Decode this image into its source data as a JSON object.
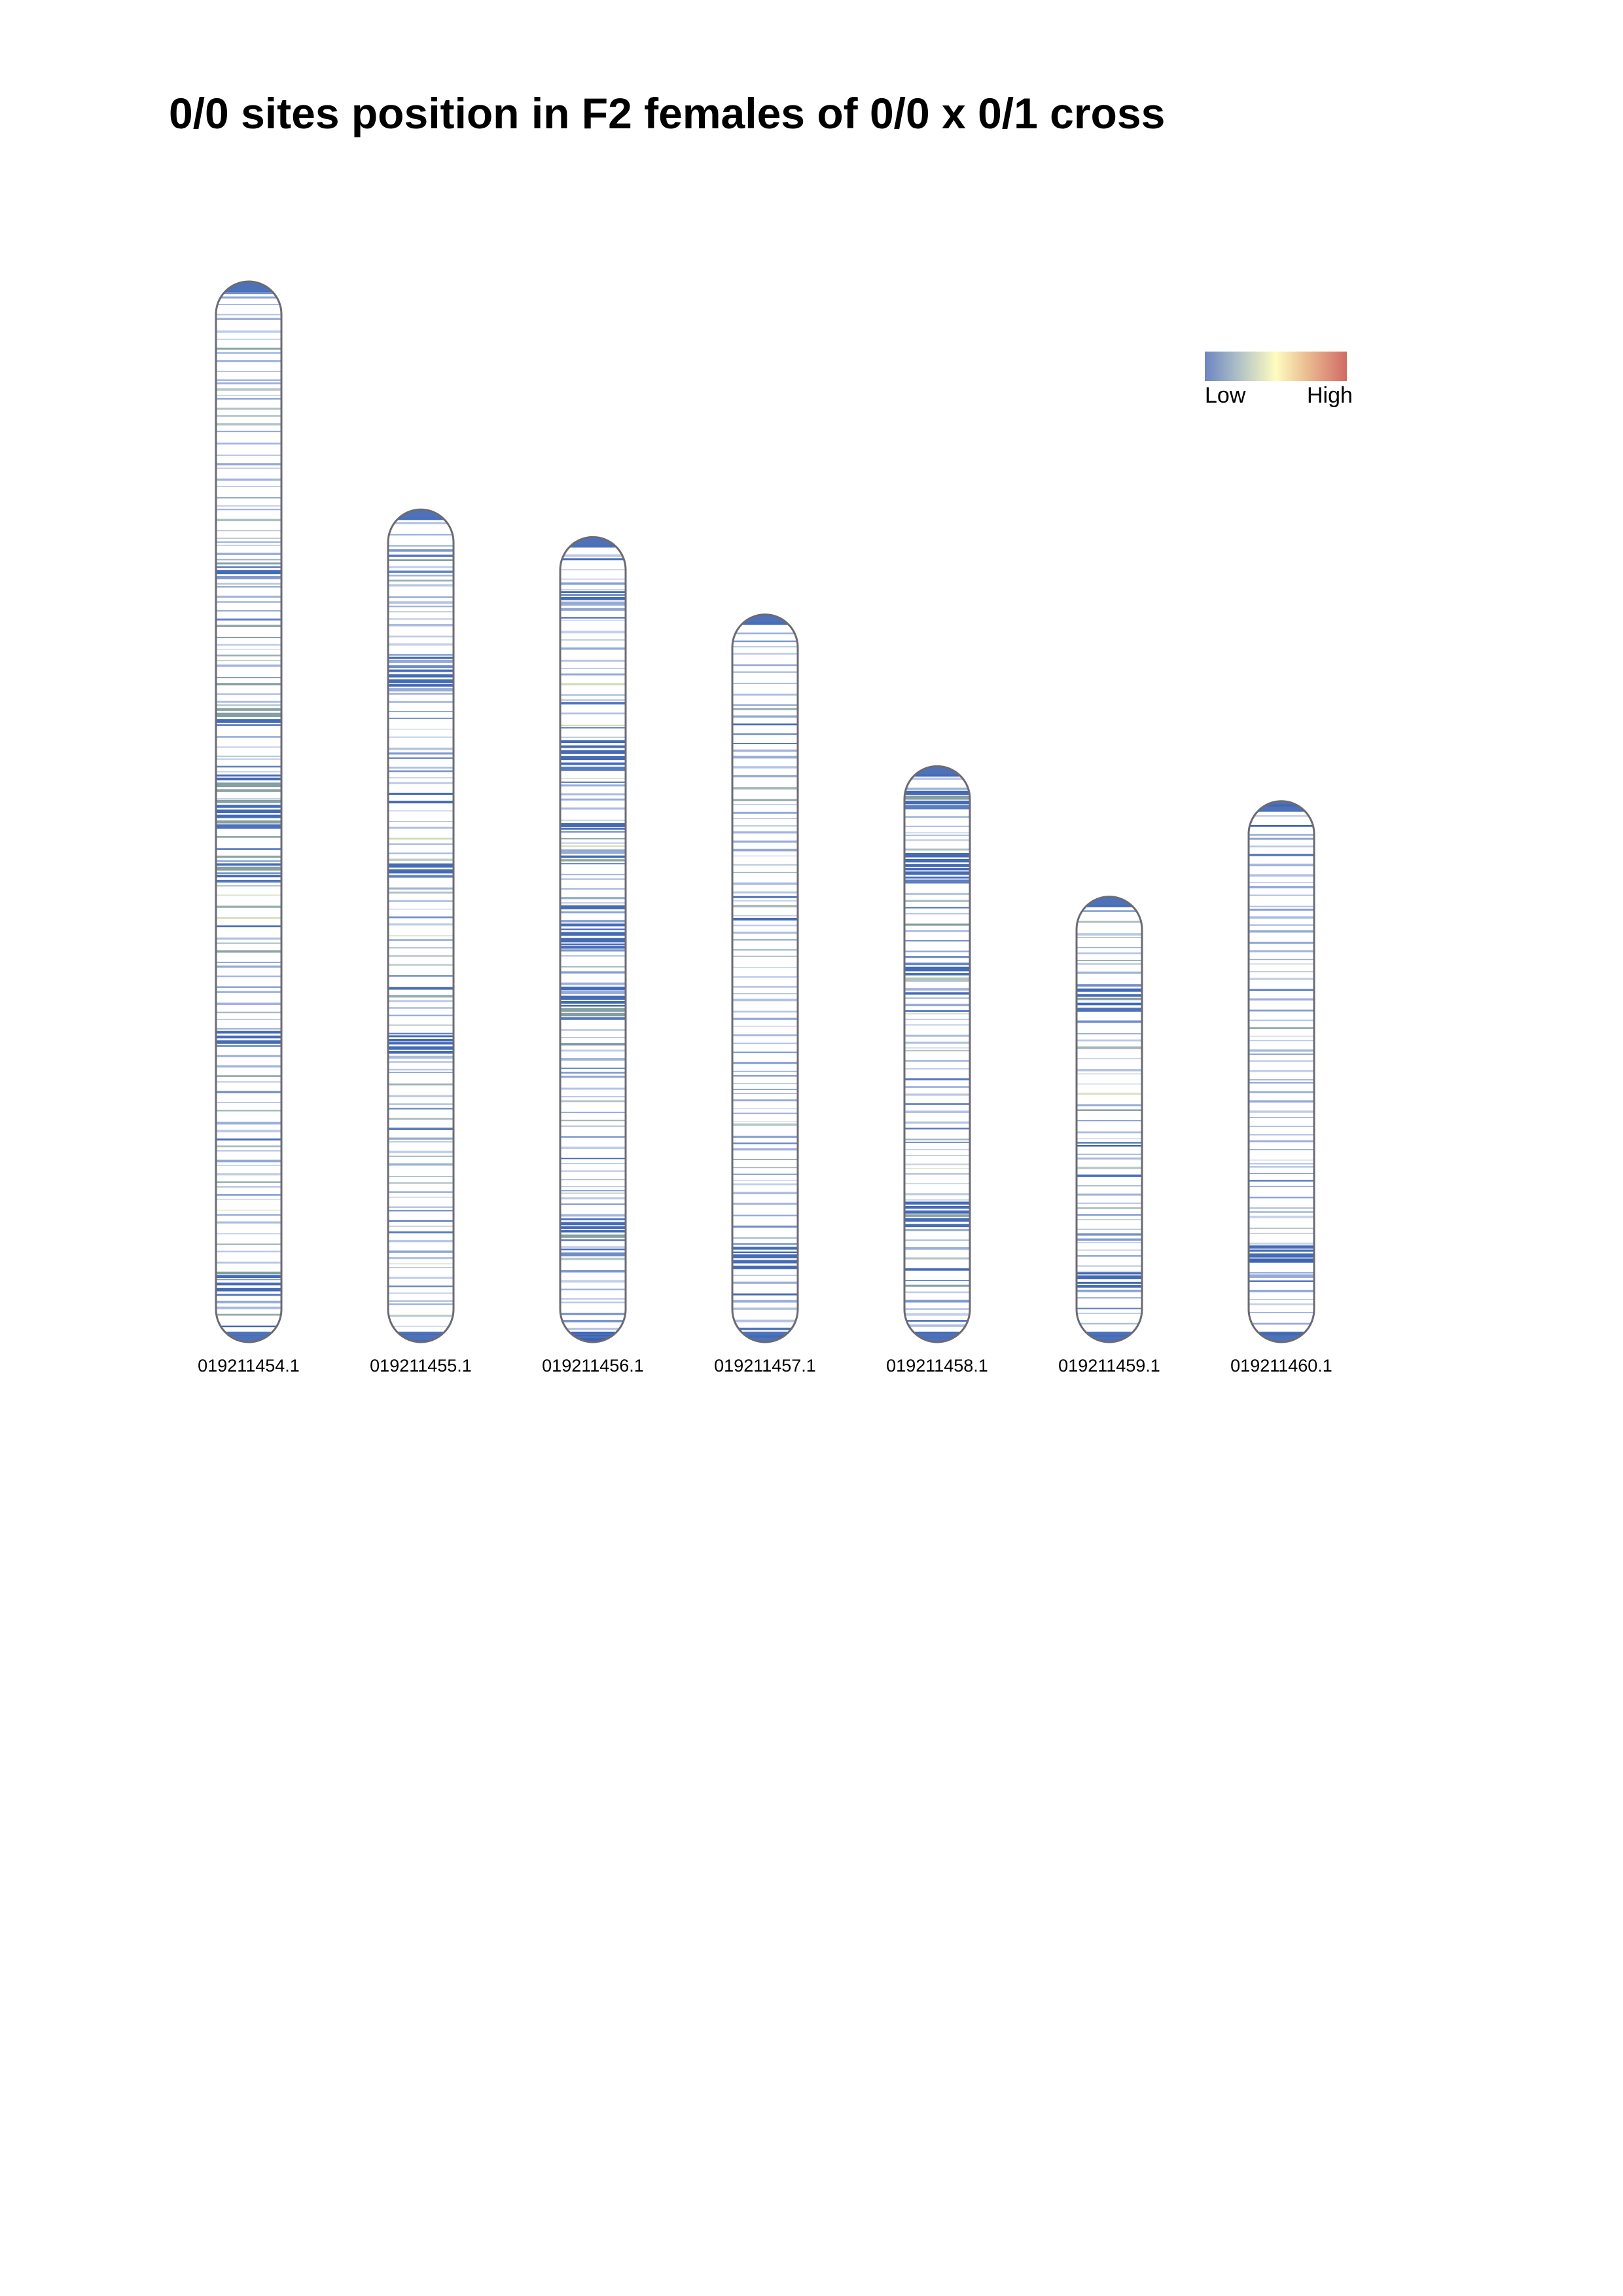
{
  "title": "0/0 sites position in F2 females of 0/0 x 0/1 cross",
  "legend": {
    "low_label": "Low",
    "high_label": "High",
    "colors": [
      "#6c85c2",
      "#b3c4c6",
      "#fefcbf",
      "#e8b38c",
      "#d06b65"
    ]
  },
  "colors": {
    "outline": "#6b6b75",
    "dense_band": "#3b63b3",
    "light_band": "#8fa5d6",
    "mid_band": "#7f9a9c",
    "yellowish_band": "#c9d6a8",
    "high_band": "#d06b65"
  },
  "chart_data": {
    "type": "ideogram",
    "title": "0/0 sites position in F2 females of 0/0 x 0/1 cross",
    "value_scale": "Low to High",
    "chromosomes": [
      {
        "name": "019211454.1",
        "relative_length": 1.0
      },
      {
        "name": "019211455.1",
        "relative_length": 0.785
      },
      {
        "name": "019211456.1",
        "relative_length": 0.759
      },
      {
        "name": "019211457.1",
        "relative_length": 0.686
      },
      {
        "name": "019211458.1",
        "relative_length": 0.543
      },
      {
        "name": "019211459.1",
        "relative_length": 0.42
      },
      {
        "name": "019211460.1",
        "relative_length": 0.51
      }
    ]
  }
}
